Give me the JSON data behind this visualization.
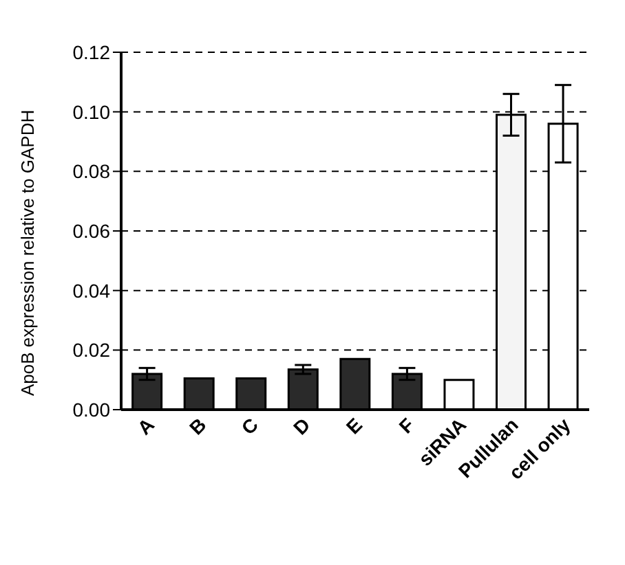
{
  "chart_data": {
    "type": "bar",
    "ylabel": "ApoB expression relative to GAPDH",
    "categories": [
      "A",
      "B",
      "C",
      "D",
      "E",
      "F",
      "siRNA",
      "Pullulan",
      "cell only"
    ],
    "values": [
      0.012,
      0.0105,
      0.0105,
      0.0135,
      0.017,
      0.012,
      0.01,
      0.099,
      0.096
    ],
    "colors": [
      "#2a2a2a",
      "#2a2a2a",
      "#2a2a2a",
      "#2a2a2a",
      "#2a2a2a",
      "#2a2a2a",
      "#ffffff",
      "#f4f4f4",
      "#ffffff"
    ],
    "errors": [
      0.002,
      null,
      null,
      0.0015,
      null,
      0.002,
      null,
      0.007,
      0.013
    ],
    "ylim": [
      0,
      0.12
    ],
    "yticks": [
      {
        "value": 0,
        "label": "0.00"
      },
      {
        "value": 0.02,
        "label": "0.02"
      },
      {
        "value": 0.04,
        "label": "0.04"
      },
      {
        "value": 0.06,
        "label": "0.06"
      },
      {
        "value": 0.08,
        "label": "0.08"
      },
      {
        "value": 0.1,
        "label": "0.10"
      },
      {
        "value": 0.12,
        "label": "0.12"
      }
    ],
    "grid": "y"
  }
}
